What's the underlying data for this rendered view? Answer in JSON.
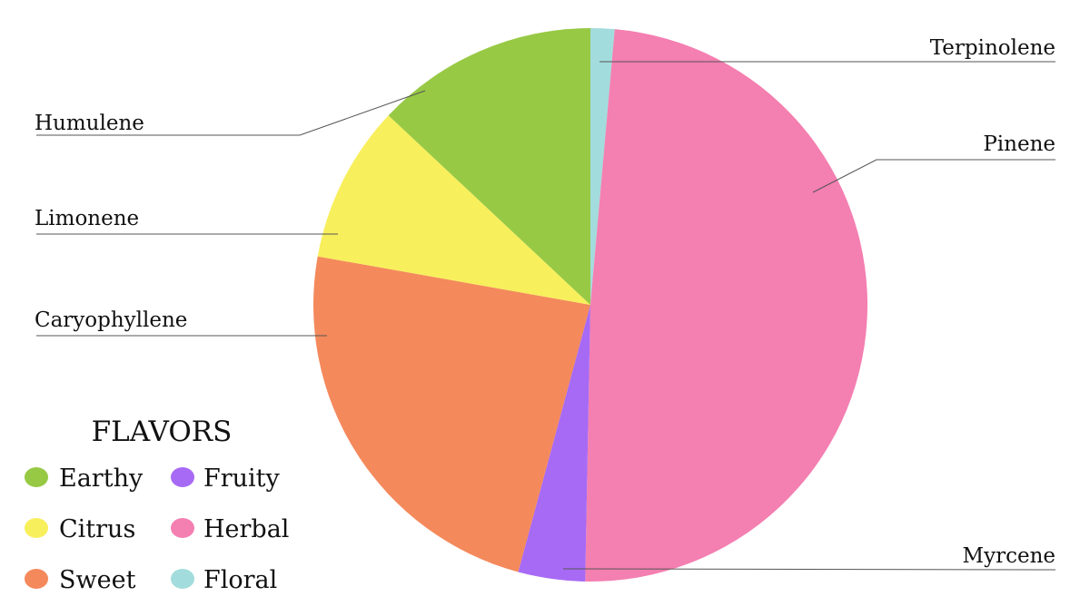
{
  "chart_data": {
    "type": "pie",
    "labels": [
      "Terpinolene",
      "Pinene",
      "Myrcene",
      "Caryophyllene",
      "Limonene",
      "Humulene"
    ],
    "values": [
      1.4,
      48.9,
      3.9,
      23.6,
      9.2,
      13.0
    ],
    "colors": [
      "#a3dcdc",
      "#f47fb1",
      "#a76af5",
      "#f4895c",
      "#f8ef5c",
      "#97c945"
    ],
    "legend": {
      "title": "FLAVORS",
      "items": [
        {
          "name": "Earthy",
          "color": "#97c945"
        },
        {
          "name": "Fruity",
          "color": "#a76af5"
        },
        {
          "name": "Citrus",
          "color": "#f8ef5c"
        },
        {
          "name": "Herbal",
          "color": "#f47fb1"
        },
        {
          "name": "Sweet",
          "color": "#f4895c"
        },
        {
          "name": "Floral",
          "color": "#a3dcdc"
        }
      ]
    }
  }
}
